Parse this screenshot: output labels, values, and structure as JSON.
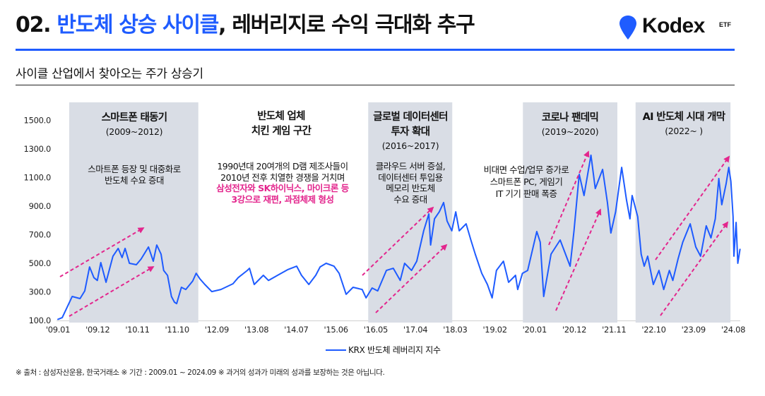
{
  "header": {
    "title_number": "02. ",
    "title_highlight": "반도체 상승 사이클",
    "title_rest": ", 레버리지로 수익 극대화 추구",
    "logo_text": "Kodex",
    "logo_suffix": "ETF"
  },
  "colors": {
    "brand_blue": "#1f5cff",
    "series_blue": "#1e5bff",
    "accent_pink": "#e3268d",
    "band_gray": "#d9dde5"
  },
  "chart_data": {
    "type": "line",
    "title": "사이클 산업에서 찾아오는 주가 상승기",
    "xlabel": "",
    "ylabel": "",
    "ylim": [
      100,
      1500
    ],
    "grid": false,
    "legend_position": "bottom-center",
    "yticks": [
      "1500.0",
      "1300.0",
      "1100.0",
      "900.0",
      "700.0",
      "500.0",
      "300.0",
      "100.0"
    ],
    "xticks": [
      "'09.01",
      "'09.12",
      "'10.11",
      "'11.10",
      "'12.09",
      "'13.08",
      "'14.07",
      "'15.06",
      "'16.05",
      "'17.04",
      "'18.03",
      "'19.02",
      "'20.01",
      "'20.12",
      "'21.11",
      "'22.10",
      "'23.09",
      "'24.08"
    ],
    "series": [
      {
        "name": "KRX 반도체 레버리지 지수",
        "color": "#1e5bff",
        "x": [
          2009.0,
          2009.1,
          2009.24,
          2009.33,
          2009.51,
          2009.62,
          2009.73,
          2009.83,
          2009.91,
          2009.99,
          2010.11,
          2010.27,
          2010.39,
          2010.48,
          2010.55,
          2010.65,
          2010.81,
          2010.92,
          2011.09,
          2011.2,
          2011.28,
          2011.38,
          2011.44,
          2011.53,
          2011.62,
          2011.69,
          2011.74,
          2011.85,
          2011.95,
          2012.11,
          2012.19,
          2012.28,
          2012.39,
          2012.55,
          2012.76,
          2013.04,
          2013.16,
          2013.37,
          2013.42,
          2013.53,
          2013.74,
          2013.86,
          2014.07,
          2014.3,
          2014.51,
          2014.62,
          2014.79,
          2014.95,
          2015.05,
          2015.19,
          2015.37,
          2015.49,
          2015.65,
          2015.81,
          2016.02,
          2016.11,
          2016.25,
          2016.38,
          2016.58,
          2016.74,
          2016.9,
          2017.0,
          2017.16,
          2017.28,
          2017.44,
          2017.56,
          2017.6,
          2017.69,
          2017.8,
          2017.9,
          2017.98,
          2018.09,
          2018.18,
          2018.26,
          2018.42,
          2018.53,
          2018.63,
          2018.78,
          2018.91,
          2019.02,
          2019.12,
          2019.28,
          2019.4,
          2019.56,
          2019.61,
          2019.72,
          2019.84,
          2020.05,
          2020.13,
          2020.21,
          2020.38,
          2020.59,
          2020.82,
          2020.91,
          2021.03,
          2021.14,
          2021.3,
          2021.4,
          2021.57,
          2021.68,
          2021.76,
          2021.87,
          2022.01,
          2022.12,
          2022.2,
          2022.25,
          2022.38,
          2022.46,
          2022.53,
          2022.61,
          2022.74,
          2022.87,
          2022.98,
          2023.11,
          2023.19,
          2023.31,
          2023.42,
          2023.59,
          2023.72,
          2023.83,
          2023.96,
          2024.07,
          2024.17,
          2024.25,
          2024.32,
          2024.42,
          2024.48,
          2024.53,
          2024.58,
          2024.6,
          2024.65,
          2024.69,
          2024.74
        ],
        "y": [
          108,
          120,
          210,
          268,
          253,
          307,
          475,
          400,
          380,
          505,
          367,
          550,
          604,
          540,
          604,
          500,
          490,
          530,
          614,
          515,
          628,
          564,
          450,
          415,
          268,
          228,
          218,
          332,
          317,
          376,
          430,
          390,
          352,
          302,
          317,
          357,
          400,
          450,
          465,
          352,
          416,
          380,
          416,
          455,
          480,
          416,
          352,
          416,
          475,
          500,
          480,
          430,
          283,
          332,
          317,
          258,
          327,
          307,
          450,
          465,
          380,
          500,
          450,
          515,
          727,
          845,
          628,
          811,
          860,
          925,
          796,
          727,
          860,
          727,
          776,
          663,
          564,
          430,
          352,
          258,
          450,
          515,
          367,
          416,
          317,
          430,
          450,
          722,
          648,
          268,
          564,
          663,
          480,
          727,
          1122,
          974,
          1256,
          1023,
          1157,
          925,
          712,
          860,
          1171,
          944,
          811,
          974,
          826,
          564,
          480,
          550,
          352,
          450,
          317,
          450,
          380,
          530,
          648,
          776,
          614,
          550,
          762,
          678,
          811,
          1093,
          910,
          1058,
          1171,
          1073,
          826,
          550,
          786,
          500,
          598
        ]
      }
    ],
    "highlight_periods": [
      {
        "id": "smartphone",
        "start": 2009.26,
        "end": 2012.24,
        "title": [
          "스마트폰 태동기"
        ],
        "period": "(2009~2012)",
        "description": [
          "스마트폰 등장 및 대중화로",
          "반도체 수요 증대"
        ]
      },
      {
        "id": "datacenter",
        "start": 2016.16,
        "end": 2018.1,
        "title": [
          "글로벌 데이터센터",
          "투자 확대"
        ],
        "period": "(2016~2017)",
        "description": [
          "클라우드 서버 증설,",
          "데이터센터 투입용",
          "메모리 반도체",
          "수요 증대"
        ]
      },
      {
        "id": "pandemic",
        "start": 2019.73,
        "end": 2021.91,
        "title": [
          "코로나 팬데믹"
        ],
        "period": "(2019~2020)",
        "description": [
          "비대면 수업/업무 증가로",
          "스마트폰 PC, 게임기",
          "IT 기기 판매 폭증"
        ]
      },
      {
        "id": "ai",
        "start": 2022.33,
        "end": 2024.52,
        "title": [
          "AI 반도체 시대 개막"
        ],
        "period": "(2022~ )",
        "description": []
      }
    ],
    "annotations": [
      {
        "id": "chicken-game",
        "title": [
          "반도체 업체",
          "치킨 게임 구간"
        ],
        "description": [
          "1990년대 20여개의 D램 제조사들이",
          "2010년 전후 치열한 경쟁을 거치며"
        ],
        "highlight": [
          "삼성전자와 SK하이닉스, 마이크론 등",
          "3강으로 재편, 과점체제 형성"
        ]
      }
    ]
  },
  "footer": "※ 출처 : 삼성자산운용, 한국거래소 ※ 기간 : 2009.01 ~ 2024.09 ※ 과거의 성과가 미래의 성과를 보장하는 것은 아닙니다."
}
